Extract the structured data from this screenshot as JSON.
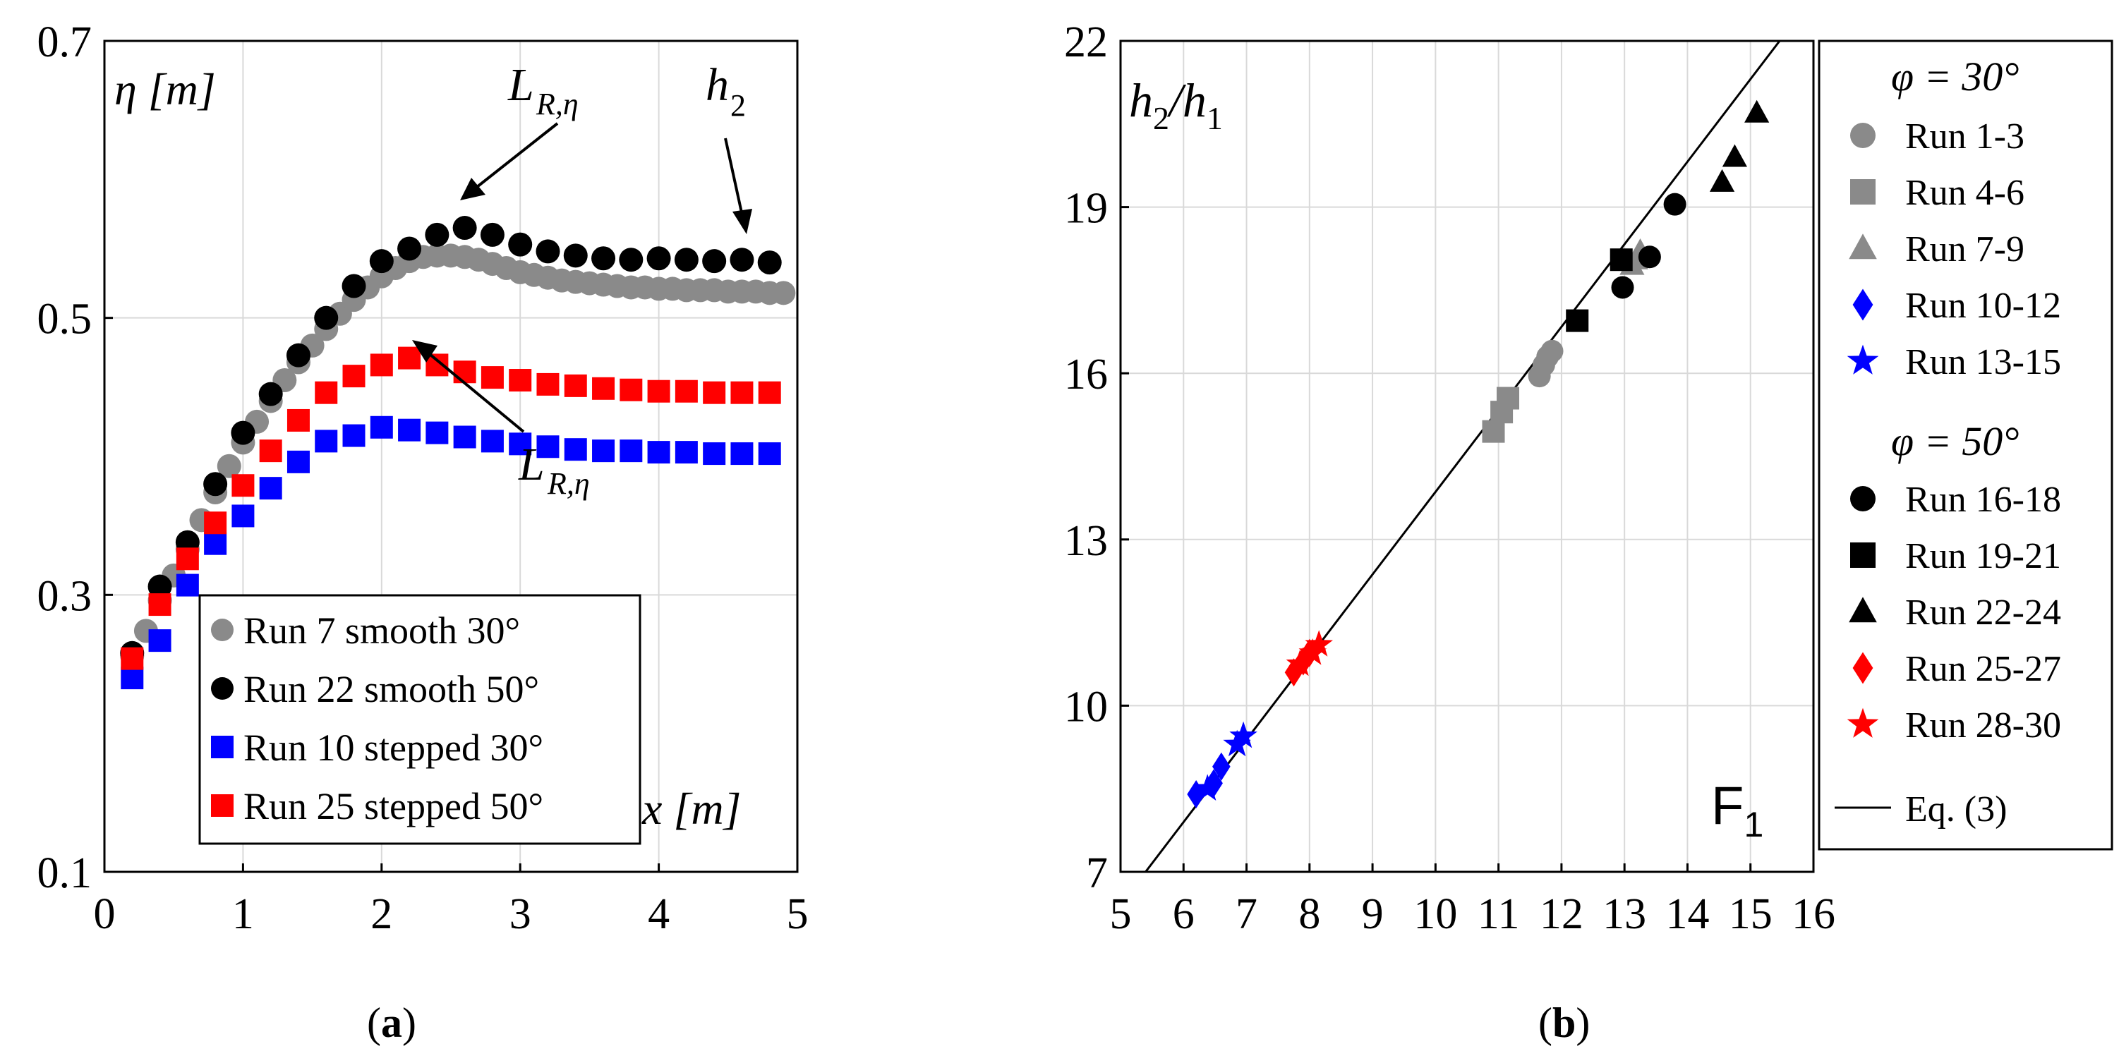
{
  "colors": {
    "gray": "#8a8a8a",
    "black": "#000000",
    "blue": "#0000ff",
    "red": "#ff0000",
    "grid": "#d9d9d9"
  },
  "chart_data": [
    {
      "id": "a",
      "type": "scatter",
      "panel_label": "(a)",
      "panel_letter": "a",
      "ylabel": "η [m]",
      "xlabel": "x [m]",
      "xlim": [
        0,
        5
      ],
      "ylim": [
        0.1,
        0.7
      ],
      "xticks": [
        0,
        1,
        2,
        3,
        4,
        5
      ],
      "xtick_labels": [
        "0",
        "1",
        "2",
        "3",
        "4",
        "5"
      ],
      "yticks": [
        0.1,
        0.3,
        0.5,
        0.7
      ],
      "ytick_labels": [
        "0.1",
        "0.3",
        "0.5",
        "0.7"
      ],
      "grid": true,
      "legend_position": "bottom-center",
      "annotations": [
        {
          "text_main": "L",
          "text_sub": "R,η",
          "x": 2.55,
          "y": 0.565,
          "target": "peak of Run 22 smooth 50°"
        },
        {
          "text_main": "h",
          "text_sub": "2",
          "x": 4.68,
          "y": 0.541,
          "target": "end of Run 22 smooth 50°"
        },
        {
          "text_main": "L",
          "text_sub": "R,η",
          "x": 2.2,
          "y": 0.471,
          "target": "peak of Run 25 stepped 50°"
        }
      ],
      "series": [
        {
          "name": "Run 7 smooth 30°",
          "marker": "circle",
          "color": "#8a8a8a",
          "x": [
            0.2,
            0.3,
            0.4,
            0.5,
            0.6,
            0.7,
            0.8,
            0.9,
            1.0,
            1.1,
            1.2,
            1.3,
            1.4,
            1.5,
            1.6,
            1.7,
            1.8,
            1.9,
            2.0,
            2.1,
            2.2,
            2.3,
            2.4,
            2.5,
            2.6,
            2.7,
            2.8,
            2.9,
            3.0,
            3.1,
            3.2,
            3.3,
            3.4,
            3.5,
            3.6,
            3.7,
            3.8,
            3.9,
            4.0,
            4.1,
            4.2,
            4.3,
            4.4,
            4.5,
            4.6,
            4.7,
            4.8,
            4.9
          ],
          "y": [
            0.256,
            0.274,
            0.296,
            0.314,
            0.333,
            0.354,
            0.374,
            0.393,
            0.41,
            0.425,
            0.44,
            0.455,
            0.468,
            0.48,
            0.492,
            0.503,
            0.513,
            0.522,
            0.53,
            0.536,
            0.541,
            0.544,
            0.545,
            0.545,
            0.544,
            0.542,
            0.539,
            0.536,
            0.533,
            0.531,
            0.529,
            0.527,
            0.526,
            0.525,
            0.524,
            0.523,
            0.522,
            0.522,
            0.521,
            0.521,
            0.52,
            0.52,
            0.52,
            0.519,
            0.519,
            0.519,
            0.518,
            0.518
          ]
        },
        {
          "name": "Run 22 smooth 50°",
          "marker": "circle",
          "color": "#000000",
          "x": [
            0.2,
            0.4,
            0.6,
            0.8,
            1.0,
            1.2,
            1.4,
            1.6,
            1.8,
            2.0,
            2.2,
            2.4,
            2.6,
            2.8,
            3.0,
            3.2,
            3.4,
            3.6,
            3.8,
            4.0,
            4.2,
            4.4,
            4.6,
            4.8
          ],
          "y": [
            0.258,
            0.306,
            0.338,
            0.38,
            0.417,
            0.445,
            0.473,
            0.5,
            0.523,
            0.541,
            0.55,
            0.56,
            0.565,
            0.56,
            0.553,
            0.548,
            0.545,
            0.543,
            0.542,
            0.543,
            0.542,
            0.541,
            0.542,
            0.54
          ]
        },
        {
          "name": "Run 10 stepped 30°",
          "marker": "square",
          "color": "#0000ff",
          "x": [
            0.2,
            0.4,
            0.6,
            0.8,
            1.0,
            1.2,
            1.4,
            1.6,
            1.8,
            2.0,
            2.2,
            2.4,
            2.6,
            2.8,
            3.0,
            3.2,
            3.4,
            3.6,
            3.8,
            4.0,
            4.2,
            4.4,
            4.6,
            4.8
          ],
          "y": [
            0.24,
            0.267,
            0.307,
            0.337,
            0.357,
            0.377,
            0.396,
            0.411,
            0.415,
            0.421,
            0.419,
            0.417,
            0.414,
            0.411,
            0.409,
            0.407,
            0.405,
            0.404,
            0.404,
            0.403,
            0.403,
            0.402,
            0.402,
            0.402
          ]
        },
        {
          "name": "Run 25 stepped 50°",
          "marker": "square",
          "color": "#ff0000",
          "x": [
            0.2,
            0.4,
            0.6,
            0.8,
            1.0,
            1.2,
            1.4,
            1.6,
            1.8,
            2.0,
            2.2,
            2.4,
            2.6,
            2.8,
            3.0,
            3.2,
            3.4,
            3.6,
            3.8,
            4.0,
            4.2,
            4.4,
            4.6,
            4.8
          ],
          "y": [
            0.254,
            0.293,
            0.326,
            0.352,
            0.379,
            0.404,
            0.426,
            0.446,
            0.458,
            0.466,
            0.471,
            0.466,
            0.461,
            0.457,
            0.455,
            0.452,
            0.451,
            0.449,
            0.448,
            0.447,
            0.447,
            0.446,
            0.446,
            0.446
          ]
        }
      ]
    },
    {
      "id": "b",
      "type": "scatter",
      "panel_label": "(b)",
      "panel_letter": "b",
      "ylabel_main": "h",
      "ylabel_sub1": "2",
      "ylabel_sep": "/h",
      "ylabel_sub2": "1",
      "xlabel_main": "F",
      "xlabel_sub": "1",
      "xlim": [
        5,
        16
      ],
      "ylim": [
        7,
        22
      ],
      "xticks": [
        5,
        6,
        7,
        8,
        9,
        10,
        11,
        12,
        13,
        14,
        15,
        16
      ],
      "xtick_labels": [
        "5",
        "6",
        "7",
        "8",
        "9",
        "10",
        "11",
        "12",
        "13",
        "14",
        "15",
        "16"
      ],
      "yticks": [
        7,
        10,
        13,
        16,
        19,
        22
      ],
      "ytick_labels": [
        "7",
        "10",
        "13",
        "16",
        "19",
        "22"
      ],
      "grid": true,
      "legend_position": "outside-right",
      "legend_groups": [
        "φ = 30°",
        "φ = 50°"
      ],
      "fit_line": {
        "name": "Eq. (3)",
        "x": [
          5.25,
          16
        ],
        "y": [
          6.78,
          22.8
        ]
      },
      "series": [
        {
          "name": "Run 1-3",
          "marker": "circle",
          "color": "#8a8a8a",
          "group": 0,
          "x": [
            11.65,
            11.72,
            11.78,
            11.85
          ],
          "y": [
            15.95,
            16.15,
            16.3,
            16.4
          ]
        },
        {
          "name": "Run 4-6",
          "marker": "square",
          "color": "#8a8a8a",
          "group": 0,
          "x": [
            10.92,
            11.05,
            11.15
          ],
          "y": [
            14.95,
            15.3,
            15.55
          ]
        },
        {
          "name": "Run 7-9",
          "marker": "triangle",
          "color": "#8a8a8a",
          "group": 0,
          "x": [
            13.12,
            13.18,
            13.25
          ],
          "y": [
            17.95,
            18.05,
            18.2
          ]
        },
        {
          "name": "Run 10-12",
          "marker": "diamond",
          "color": "#0000ff",
          "group": 0,
          "x": [
            6.2,
            6.48,
            6.6
          ],
          "y": [
            8.4,
            8.6,
            8.9
          ]
        },
        {
          "name": "Run 13-15",
          "marker": "star",
          "color": "#0000ff",
          "group": 0,
          "x": [
            6.38,
            6.85,
            6.95
          ],
          "y": [
            8.5,
            9.3,
            9.45
          ]
        },
        {
          "name": "Run 16-18",
          "marker": "circle",
          "color": "#000000",
          "group": 1,
          "x": [
            12.97,
            13.4,
            13.8
          ],
          "y": [
            17.55,
            18.1,
            19.05
          ]
        },
        {
          "name": "Run 19-21",
          "marker": "square",
          "color": "#000000",
          "group": 1,
          "x": [
            12.25,
            12.95
          ],
          "y": [
            16.95,
            18.05
          ]
        },
        {
          "name": "Run 22-24",
          "marker": "triangle",
          "color": "#000000",
          "group": 1,
          "x": [
            14.55,
            14.75,
            15.1
          ],
          "y": [
            19.45,
            19.9,
            20.7
          ]
        },
        {
          "name": "Run 25-27",
          "marker": "diamond",
          "color": "#ff0000",
          "group": 1,
          "x": [
            7.75,
            7.9,
            8.0
          ],
          "y": [
            10.6,
            10.8,
            10.95
          ]
        },
        {
          "name": "Run 28-30",
          "marker": "star",
          "color": "#ff0000",
          "group": 1,
          "x": [
            7.85,
            8.05,
            8.15
          ],
          "y": [
            10.75,
            10.95,
            11.1
          ]
        }
      ]
    }
  ]
}
